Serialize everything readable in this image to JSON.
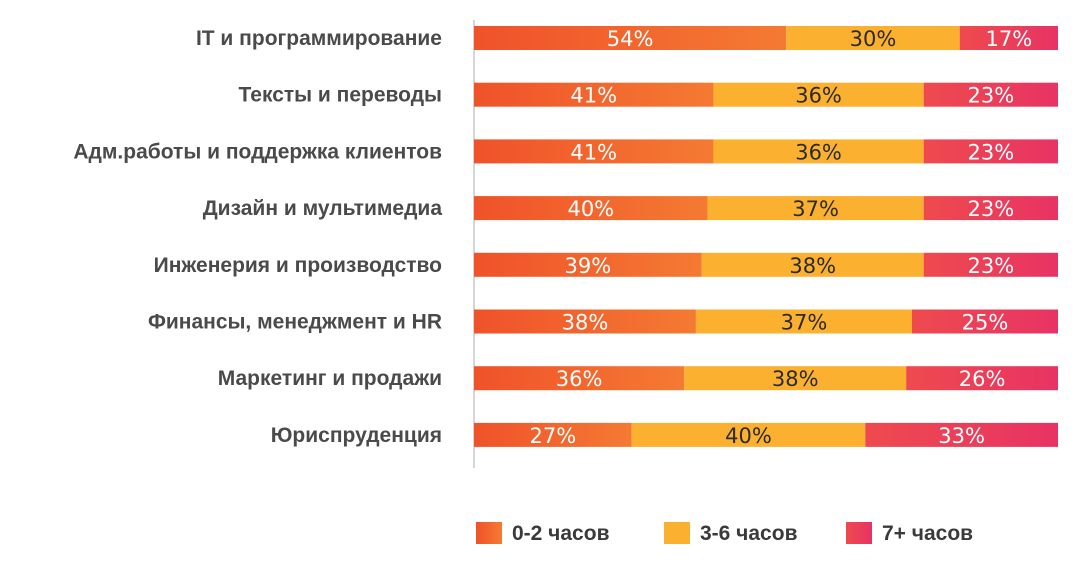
{
  "chart_data": {
    "type": "bar",
    "orientation": "horizontal",
    "stacked": true,
    "normalized": true,
    "categories": [
      "IT и программирование",
      "Тексты и переводы",
      "Адм.работы и поддержка клиентов",
      "Дизайн и мультимедиа",
      "Инженерия и производство",
      "Финансы, менеджмент и HR",
      "Маркетинг и продажи",
      "Юриспруденция"
    ],
    "series": [
      {
        "name": "0-2 часов",
        "color": "#f2622c",
        "label_color": "#ffffff",
        "values": [
          54,
          41,
          41,
          40,
          39,
          38,
          36,
          27
        ]
      },
      {
        "name": "3-6 часов",
        "color": "#fbb030",
        "label_color": "#2b2b2b",
        "values": [
          30,
          36,
          36,
          37,
          38,
          37,
          38,
          40
        ]
      },
      {
        "name": "7+ часов",
        "color": "#ec3d58",
        "label_color": "#ffffff",
        "values": [
          17,
          23,
          23,
          23,
          23,
          25,
          26,
          33
        ]
      }
    ],
    "value_suffix": "%",
    "title": "",
    "xlabel": "",
    "ylabel": "",
    "grid": false,
    "legend_position": "bottom"
  }
}
